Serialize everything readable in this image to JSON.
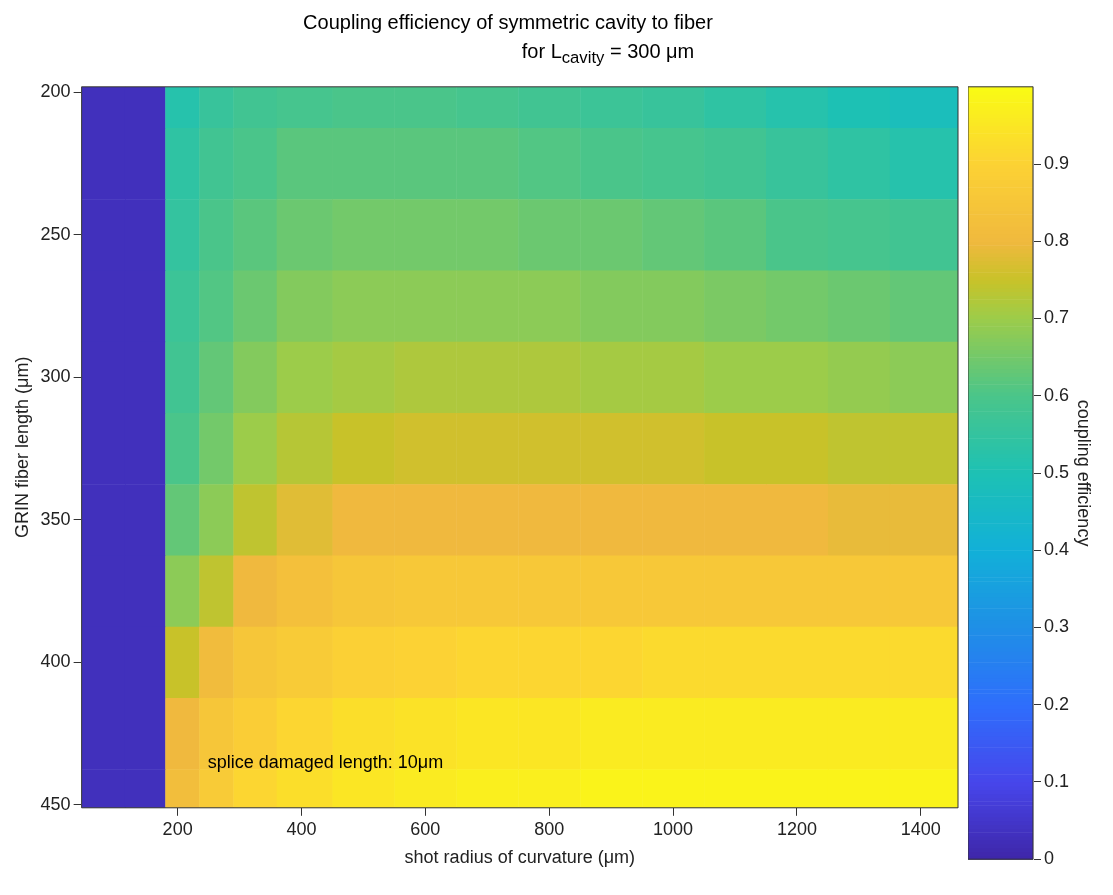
{
  "chart_data": {
    "type": "heatmap",
    "title": "Coupling efficiency of symmetric cavity to fiber",
    "subtitle": "for L$_{cavity}$ = 300 μm",
    "xlabel": "shot radius of curvature (μm)",
    "ylabel": "GRIN fiber length (μm)",
    "clabel": "coupling efficiency",
    "annotations": [
      "splice damaged length: 10μm"
    ],
    "x": [
      80,
      150,
      210,
      260,
      320,
      400,
      500,
      600,
      700,
      800,
      900,
      1000,
      1100,
      1200,
      1300,
      1400
    ],
    "y": [
      200,
      225,
      250,
      275,
      300,
      325,
      350,
      375,
      400,
      425,
      450
    ],
    "xlim": [
      45,
      1460
    ],
    "xticks": [
      200,
      400,
      600,
      800,
      1000,
      1200,
      1400
    ],
    "ylim": [
      451,
      198
    ],
    "yticks": [
      200,
      250,
      300,
      350,
      400,
      450
    ],
    "clim": [
      0,
      1
    ],
    "cticks": [
      0,
      0.1,
      0.2,
      0.3,
      0.4,
      0.5,
      0.6,
      0.7,
      0.8,
      0.9
    ],
    "cells": [
      [
        0.03,
        0.03,
        0.52,
        0.56,
        0.58,
        0.59,
        0.6,
        0.6,
        0.59,
        0.58,
        0.57,
        0.56,
        0.54,
        0.52,
        0.5,
        0.48
      ],
      [
        0.03,
        0.03,
        0.54,
        0.58,
        0.6,
        0.62,
        0.62,
        0.62,
        0.62,
        0.61,
        0.6,
        0.59,
        0.58,
        0.56,
        0.54,
        0.52
      ],
      [
        0.03,
        0.03,
        0.55,
        0.6,
        0.62,
        0.64,
        0.65,
        0.65,
        0.65,
        0.64,
        0.64,
        0.63,
        0.62,
        0.6,
        0.59,
        0.58
      ],
      [
        0.03,
        0.03,
        0.57,
        0.61,
        0.64,
        0.67,
        0.68,
        0.68,
        0.68,
        0.68,
        0.67,
        0.67,
        0.66,
        0.65,
        0.64,
        0.63
      ],
      [
        0.03,
        0.03,
        0.58,
        0.63,
        0.67,
        0.7,
        0.71,
        0.72,
        0.72,
        0.72,
        0.71,
        0.71,
        0.7,
        0.7,
        0.69,
        0.68
      ],
      [
        0.03,
        0.03,
        0.6,
        0.65,
        0.7,
        0.73,
        0.75,
        0.76,
        0.76,
        0.76,
        0.76,
        0.76,
        0.75,
        0.75,
        0.74,
        0.74
      ],
      [
        0.03,
        0.03,
        0.63,
        0.68,
        0.74,
        0.78,
        0.8,
        0.8,
        0.8,
        0.8,
        0.8,
        0.8,
        0.8,
        0.8,
        0.79,
        0.79
      ],
      [
        0.03,
        0.03,
        0.68,
        0.74,
        0.8,
        0.83,
        0.85,
        0.86,
        0.86,
        0.86,
        0.86,
        0.86,
        0.86,
        0.86,
        0.86,
        0.86
      ],
      [
        0.03,
        0.03,
        0.75,
        0.81,
        0.85,
        0.87,
        0.89,
        0.9,
        0.91,
        0.91,
        0.91,
        0.92,
        0.92,
        0.92,
        0.92,
        0.92
      ],
      [
        0.03,
        0.03,
        0.8,
        0.85,
        0.88,
        0.91,
        0.93,
        0.94,
        0.95,
        0.95,
        0.96,
        0.96,
        0.96,
        0.96,
        0.96,
        0.96
      ],
      [
        0.03,
        0.03,
        0.82,
        0.87,
        0.91,
        0.93,
        0.95,
        0.96,
        0.97,
        0.97,
        0.98,
        0.98,
        0.98,
        0.98,
        0.98,
        0.98
      ]
    ]
  }
}
